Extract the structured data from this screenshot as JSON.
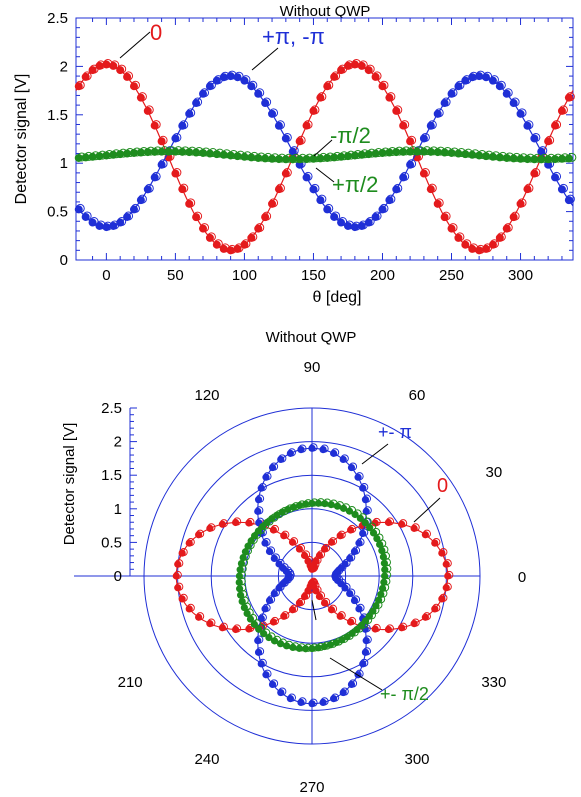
{
  "chart_data": [
    {
      "type": "scatter",
      "title": "Without QWP",
      "xlabel": "θ [deg]",
      "ylabel": "Detector signal [V]",
      "xlim": [
        -22,
        338
      ],
      "ylim": [
        0,
        2.5
      ],
      "x_ticks": [
        0,
        50,
        100,
        150,
        200,
        250,
        300
      ],
      "y_ticks": [
        0,
        0.5,
        1,
        1.5,
        2,
        2.5
      ],
      "x_tick_labels": [
        "0",
        "50",
        "100",
        "150",
        "200",
        "250",
        "300"
      ],
      "y_tick_labels": [
        "0",
        "0.5",
        "1",
        "1.5",
        "2",
        "2.5"
      ],
      "grid": false,
      "theta_step_deg": 5,
      "series": [
        {
          "name": "0",
          "color": "#e41a1c",
          "model": {
            "offset": 1.06,
            "amplitude": 0.96,
            "kind": "cos2"
          }
        },
        {
          "name": "+π, -π",
          "color": "#1f2fd6",
          "model": {
            "offset": 1.12,
            "amplitude": -0.78,
            "kind": "cos2"
          }
        },
        {
          "name": "-π/2, +π/2",
          "color": "#1e8c1e",
          "model": {
            "offset": 1.08,
            "amplitude": 0.04,
            "kind": "sin2"
          }
        }
      ],
      "annotations": [
        {
          "text": "0",
          "color": "#e41a1c",
          "points_to": {
            "x": -5,
            "y": 2.0
          }
        },
        {
          "text": "+π, -π",
          "color": "#1f2fd6",
          "points_to": {
            "x": 85,
            "y": 1.9
          }
        },
        {
          "text": "-π/2",
          "color": "#1e8c1e",
          "points_to": {
            "x": 140,
            "y": 1.14
          }
        },
        {
          "text": "+π/2",
          "color": "#1e8c1e",
          "points_to": {
            "x": 140,
            "y": 1.04
          }
        }
      ]
    },
    {
      "type": "polar-scatter",
      "title": "Without QWP",
      "ylabel": "Detector signal [V]",
      "rlim": [
        0,
        2.5
      ],
      "r_ticks": [
        0,
        0.5,
        1,
        1.5,
        2,
        2.5
      ],
      "r_tick_labels": [
        "0",
        "0.5",
        "1",
        "1.5",
        "2",
        "2.5"
      ],
      "angle_labels": [
        "0",
        "30",
        "60",
        "90",
        "120",
        "210",
        "240",
        "270",
        "300",
        "330"
      ],
      "angle_label_values": [
        0,
        30,
        60,
        90,
        120,
        210,
        240,
        270,
        300,
        330
      ],
      "theta_step_deg": 5,
      "series": [
        {
          "name": "0",
          "color": "#e41a1c"
        },
        {
          "name": "+- π",
          "color": "#1f2fd6"
        },
        {
          "name": "+- π/2",
          "color": "#1e8c1e"
        }
      ],
      "annotations": [
        {
          "text": "+- π",
          "color": "#1f2fd6",
          "points_to": {
            "theta": 62,
            "r": 1.9
          }
        },
        {
          "text": "0",
          "color": "#e41a1c",
          "points_to": {
            "theta": 25,
            "r": 1.6
          }
        },
        {
          "text": "+- π/2",
          "color": "#1e8c1e",
          "points_to": {
            "theta": 283,
            "r": 1.12
          }
        }
      ]
    }
  ]
}
